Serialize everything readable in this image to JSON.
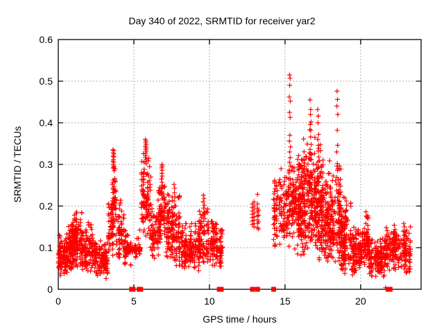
{
  "chart_data": {
    "type": "scatter",
    "title": "Day 340 of 2022, SRMTID for receiver yar2",
    "xlabel": "GPS time / hours",
    "ylabel": "SRMTID / TECUs",
    "xlim": [
      0,
      24
    ],
    "ylim": [
      0,
      0.6
    ],
    "xtick_values": [
      0,
      5,
      10,
      15,
      20
    ],
    "xtick_labels": [
      "0",
      "5",
      "10",
      "15",
      "20"
    ],
    "ytick_values": [
      0,
      0.1,
      0.2,
      0.3,
      0.4,
      0.5,
      0.6
    ],
    "ytick_labels": [
      "0",
      "0.1",
      "0.2",
      "0.3",
      "0.4",
      "0.5",
      "0.6"
    ],
    "grid": {
      "on": true,
      "color": "#aaaaaa",
      "style": "dashed"
    },
    "colors": {
      "background": "#ffffff",
      "axis": "#000000",
      "marker": "#ff0000"
    },
    "marker": {
      "shape": "plus",
      "size": 7
    },
    "zero_marker": {
      "shape": "filled-square",
      "size": 7
    },
    "density_bands_columns": [
      "hour_start",
      "hour_end",
      "tecu_min",
      "tecu_max",
      "point_count",
      "low_bias"
    ],
    "density_bands": [
      [
        0.0,
        0.6,
        0.03,
        0.135,
        110,
        1.2
      ],
      [
        0.55,
        1.05,
        0.045,
        0.165,
        100,
        1.1
      ],
      [
        0.95,
        1.55,
        0.05,
        0.19,
        120,
        1.1
      ],
      [
        1.55,
        2.3,
        0.04,
        0.165,
        110,
        1.2
      ],
      [
        2.3,
        3.3,
        0.025,
        0.125,
        130,
        1.1
      ],
      [
        3.3,
        3.62,
        0.06,
        0.21,
        55,
        1.0
      ],
      [
        3.55,
        3.8,
        0.14,
        0.3,
        40,
        0.9
      ],
      [
        3.8,
        4.35,
        0.07,
        0.23,
        65,
        1.3
      ],
      [
        4.35,
        5.45,
        0.085,
        0.107,
        70,
        1.0
      ],
      [
        4.35,
        5.45,
        0.05,
        0.15,
        45,
        1.0
      ],
      [
        5.5,
        6.15,
        0.12,
        0.33,
        105,
        1.2
      ],
      [
        6.1,
        6.6,
        0.07,
        0.2,
        60,
        1.1
      ],
      [
        6.6,
        7.1,
        0.1,
        0.27,
        80,
        1.1
      ],
      [
        7.1,
        7.6,
        0.07,
        0.24,
        75,
        1.2
      ],
      [
        7.6,
        8.1,
        0.05,
        0.24,
        70,
        1.3
      ],
      [
        8.1,
        9.3,
        0.04,
        0.17,
        150,
        1.15
      ],
      [
        9.3,
        9.95,
        0.06,
        0.21,
        90,
        1.2
      ],
      [
        10.0,
        10.85,
        0.05,
        0.17,
        115,
        1.1
      ],
      [
        14.25,
        14.65,
        0.09,
        0.28,
        45,
        1.15
      ],
      [
        14.6,
        15.15,
        0.1,
        0.3,
        70,
        1.1
      ],
      [
        15.15,
        15.55,
        0.1,
        0.3,
        55,
        1.0
      ],
      [
        15.5,
        16.2,
        0.08,
        0.33,
        175,
        1.1
      ],
      [
        16.2,
        17.0,
        0.08,
        0.4,
        185,
        1.3
      ],
      [
        17.0,
        17.6,
        0.07,
        0.36,
        145,
        1.3
      ],
      [
        17.6,
        18.3,
        0.06,
        0.31,
        150,
        1.25
      ],
      [
        18.3,
        18.75,
        0.05,
        0.3,
        90,
        1.1
      ],
      [
        18.7,
        19.35,
        0.03,
        0.23,
        130,
        1.15
      ],
      [
        19.35,
        20.25,
        0.03,
        0.16,
        130,
        1.1
      ],
      [
        20.25,
        20.55,
        0.05,
        0.185,
        55,
        1.0
      ],
      [
        20.55,
        21.6,
        0.03,
        0.125,
        140,
        1.1
      ],
      [
        21.6,
        22.15,
        0.04,
        0.15,
        70,
        1.0
      ],
      [
        22.15,
        23.35,
        0.035,
        0.16,
        150,
        1.15
      ]
    ],
    "peak_points_format": "[gps_hour, srmtid_tecu]",
    "peak_points": [
      [
        3.62,
        0.335
      ],
      [
        3.66,
        0.333
      ],
      [
        3.64,
        0.328
      ],
      [
        3.68,
        0.325
      ],
      [
        3.63,
        0.32
      ],
      [
        3.67,
        0.318
      ],
      [
        3.65,
        0.312
      ],
      [
        3.62,
        0.308
      ],
      [
        3.66,
        0.305
      ],
      [
        3.64,
        0.3
      ],
      [
        3.68,
        0.296
      ],
      [
        3.65,
        0.291
      ],
      [
        3.7,
        0.285
      ],
      [
        3.63,
        0.262
      ],
      [
        3.69,
        0.247
      ],
      [
        3.66,
        0.232
      ],
      [
        3.71,
        0.218
      ],
      [
        3.64,
        0.205
      ],
      [
        5.76,
        0.36
      ],
      [
        5.8,
        0.356
      ],
      [
        5.78,
        0.352
      ],
      [
        5.82,
        0.348
      ],
      [
        5.77,
        0.344
      ],
      [
        5.81,
        0.34
      ],
      [
        5.79,
        0.336
      ],
      [
        5.83,
        0.332
      ],
      [
        5.78,
        0.327
      ],
      [
        5.8,
        0.322
      ],
      [
        5.76,
        0.317
      ],
      [
        5.82,
        0.312
      ],
      [
        5.79,
        0.307
      ],
      [
        5.81,
        0.302
      ],
      [
        6.84,
        0.292
      ],
      [
        6.86,
        0.3
      ],
      [
        6.88,
        0.296
      ],
      [
        6.87,
        0.286
      ],
      [
        6.85,
        0.279
      ],
      [
        6.88,
        0.272
      ],
      [
        6.83,
        0.265
      ],
      [
        6.86,
        0.257
      ],
      [
        6.89,
        0.25
      ],
      [
        6.85,
        0.242
      ],
      [
        6.87,
        0.234
      ],
      [
        6.84,
        0.226
      ],
      [
        7.66,
        0.252
      ],
      [
        7.7,
        0.243
      ],
      [
        7.68,
        0.232
      ],
      [
        7.72,
        0.222
      ],
      [
        7.67,
        0.212
      ],
      [
        7.71,
        0.2
      ],
      [
        9.6,
        0.226
      ],
      [
        9.64,
        0.218
      ],
      [
        9.58,
        0.21
      ],
      [
        9.66,
        0.202
      ],
      [
        9.62,
        0.195
      ],
      [
        9.68,
        0.186
      ],
      [
        9.56,
        0.178
      ],
      [
        9.7,
        0.17
      ],
      [
        12.84,
        0.205
      ],
      [
        12.84,
        0.196
      ],
      [
        12.84,
        0.188
      ],
      [
        12.84,
        0.18
      ],
      [
        12.84,
        0.172
      ],
      [
        12.84,
        0.164
      ],
      [
        12.84,
        0.156
      ],
      [
        12.95,
        0.21
      ],
      [
        12.95,
        0.2
      ],
      [
        12.95,
        0.192
      ],
      [
        12.95,
        0.183
      ],
      [
        12.95,
        0.174
      ],
      [
        12.95,
        0.166
      ],
      [
        12.95,
        0.158
      ],
      [
        12.95,
        0.15
      ],
      [
        13.18,
        0.228
      ],
      [
        13.18,
        0.205
      ],
      [
        13.18,
        0.195
      ],
      [
        13.18,
        0.186
      ],
      [
        13.18,
        0.176
      ],
      [
        13.18,
        0.167
      ],
      [
        13.18,
        0.158
      ],
      [
        13.18,
        0.148
      ],
      [
        13.25,
        0.19
      ],
      [
        13.25,
        0.178
      ],
      [
        13.25,
        0.162
      ],
      [
        13.25,
        0.145
      ],
      [
        15.3,
        0.515
      ],
      [
        15.33,
        0.507
      ],
      [
        15.31,
        0.49
      ],
      [
        15.28,
        0.462
      ],
      [
        15.35,
        0.452
      ],
      [
        15.3,
        0.425
      ],
      [
        15.34,
        0.413
      ],
      [
        15.32,
        0.37
      ],
      [
        15.29,
        0.356
      ],
      [
        15.36,
        0.342
      ],
      [
        15.31,
        0.33
      ],
      [
        15.34,
        0.316
      ],
      [
        15.3,
        0.305
      ],
      [
        15.37,
        0.296
      ],
      [
        16.66,
        0.455
      ],
      [
        16.7,
        0.432
      ],
      [
        16.68,
        0.42
      ],
      [
        16.72,
        0.402
      ],
      [
        16.67,
        0.396
      ],
      [
        16.71,
        0.382
      ],
      [
        16.69,
        0.366
      ],
      [
        16.73,
        0.348
      ],
      [
        16.66,
        0.336
      ],
      [
        16.7,
        0.325
      ],
      [
        16.68,
        0.312
      ],
      [
        17.16,
        0.432
      ],
      [
        17.2,
        0.416
      ],
      [
        17.18,
        0.4
      ],
      [
        17.22,
        0.372
      ],
      [
        17.17,
        0.36
      ],
      [
        17.21,
        0.346
      ],
      [
        17.19,
        0.332
      ],
      [
        17.23,
        0.318
      ],
      [
        17.18,
        0.306
      ],
      [
        18.44,
        0.476
      ],
      [
        18.47,
        0.456
      ],
      [
        18.43,
        0.44
      ],
      [
        18.49,
        0.42
      ],
      [
        18.45,
        0.382
      ],
      [
        18.48,
        0.346
      ],
      [
        18.42,
        0.33
      ],
      [
        18.46,
        0.302
      ],
      [
        18.44,
        0.296
      ],
      [
        18.5,
        0.29
      ],
      [
        18.47,
        0.286
      ],
      [
        19.05,
        0.212
      ],
      [
        19.08,
        0.202
      ],
      [
        20.35,
        0.186
      ],
      [
        20.38,
        0.176
      ],
      [
        22.85,
        0.158
      ],
      [
        22.9,
        0.15
      ]
    ],
    "zero_marker_hours": [
      4.85,
      4.95,
      5.35,
      5.45,
      10.65,
      10.78,
      12.85,
      13.18,
      14.25,
      21.82,
      21.95
    ],
    "zero_plus_hours": [
      21.65
    ]
  }
}
